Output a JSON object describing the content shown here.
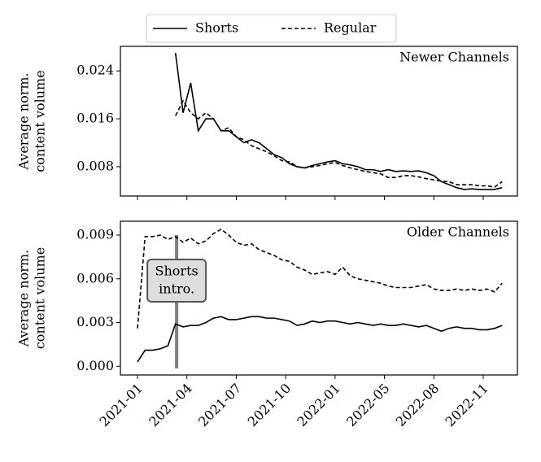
{
  "chart_data": [
    {
      "type": "line",
      "title": "Newer Channels",
      "ylabel": [
        "Average norm.",
        "content volume"
      ],
      "x": [
        10,
        12,
        14,
        16,
        18,
        20,
        22,
        24,
        26,
        28,
        30,
        32,
        34,
        36,
        38,
        40,
        42,
        44,
        46,
        48,
        50,
        52,
        54,
        56,
        58,
        60,
        62,
        64,
        66,
        68,
        70,
        72,
        74,
        76,
        78,
        80,
        82,
        84,
        86,
        88,
        90,
        92,
        94,
        96
      ],
      "series": [
        {
          "name": "Shorts",
          "color": "#000000",
          "linestyle": "solid",
          "values": [
            0.027,
            0.017,
            0.022,
            0.014,
            0.016,
            0.016,
            0.014,
            0.014,
            0.013,
            0.012,
            0.0125,
            0.012,
            0.011,
            0.01,
            0.0095,
            0.0085,
            0.008,
            0.0078,
            0.0082,
            0.0085,
            0.0088,
            0.009,
            0.0085,
            0.0083,
            0.008,
            0.0075,
            0.0075,
            0.0072,
            0.0075,
            0.0072,
            0.0073,
            0.0072,
            0.0073,
            0.007,
            0.0065,
            0.0055,
            0.005,
            0.0045,
            0.0042,
            0.0043,
            0.0042,
            0.0042,
            0.0042,
            0.0045
          ]
        },
        {
          "name": "Regular",
          "color": "#000000",
          "linestyle": "dashed",
          "values": [
            0.0165,
            0.019,
            0.017,
            0.016,
            0.017,
            0.016,
            0.014,
            0.0145,
            0.013,
            0.0125,
            0.0115,
            0.011,
            0.0105,
            0.0098,
            0.009,
            0.0088,
            0.008,
            0.0078,
            0.008,
            0.0082,
            0.0085,
            0.0087,
            0.0082,
            0.0078,
            0.0075,
            0.0072,
            0.007,
            0.0068,
            0.0062,
            0.0062,
            0.0065,
            0.0065,
            0.0063,
            0.006,
            0.0058,
            0.0056,
            0.0055,
            0.005,
            0.005,
            0.005,
            0.0048,
            0.0048,
            0.0046,
            0.0055
          ]
        }
      ],
      "xlim": [
        -4.5,
        100
      ],
      "xticks": [
        0,
        13,
        26,
        39,
        52,
        65,
        78,
        91
      ],
      "ylim": [
        0.0031,
        0.0281
      ],
      "yticks": [
        0.008,
        0.016,
        0.024
      ]
    },
    {
      "type": "line",
      "title": "Older Channels",
      "ylabel": [
        "Average norm.",
        "content volume"
      ],
      "x": [
        0,
        2,
        4,
        6,
        8,
        10,
        12,
        14,
        16,
        18,
        20,
        22,
        24,
        26,
        28,
        30,
        32,
        34,
        36,
        38,
        40,
        42,
        44,
        46,
        48,
        50,
        52,
        54,
        56,
        58,
        60,
        62,
        64,
        66,
        68,
        70,
        72,
        74,
        76,
        78,
        80,
        82,
        84,
        86,
        88,
        90,
        92,
        94,
        96
      ],
      "series": [
        {
          "color": "#000000",
          "linestyle": "solid",
          "values": [
            0.0003,
            0.0011,
            0.0011,
            0.0012,
            0.0014,
            0.0029,
            0.0027,
            0.0028,
            0.0028,
            0.003,
            0.0033,
            0.0034,
            0.0032,
            0.0032,
            0.0033,
            0.0034,
            0.0034,
            0.0033,
            0.0033,
            0.0032,
            0.0031,
            0.0028,
            0.0029,
            0.0031,
            0.003,
            0.0031,
            0.0031,
            0.003,
            0.0029,
            0.003,
            0.0029,
            0.0028,
            0.0029,
            0.0028,
            0.0028,
            0.0029,
            0.0028,
            0.0027,
            0.0028,
            0.0026,
            0.0024,
            0.0026,
            0.0027,
            0.0026,
            0.0026,
            0.0025,
            0.0025,
            0.0026,
            0.0028
          ]
        },
        {
          "color": "#000000",
          "linestyle": "dashed",
          "values": [
            0.0026,
            0.0089,
            0.0089,
            0.009,
            0.0087,
            0.0089,
            0.0085,
            0.0088,
            0.0084,
            0.0086,
            0.0091,
            0.0094,
            0.009,
            0.0085,
            0.0083,
            0.0084,
            0.008,
            0.0078,
            0.0076,
            0.0073,
            0.0072,
            0.0068,
            0.0066,
            0.0063,
            0.0064,
            0.0065,
            0.0063,
            0.0068,
            0.0062,
            0.006,
            0.0059,
            0.0058,
            0.0057,
            0.0055,
            0.0054,
            0.0054,
            0.0054,
            0.0055,
            0.0056,
            0.0053,
            0.0052,
            0.0052,
            0.0053,
            0.0052,
            0.0053,
            0.0052,
            0.0053,
            0.0051,
            0.0057
          ]
        }
      ],
      "xlim": [
        -4.5,
        100
      ],
      "xticks": [
        {
          "value": 0,
          "label": "2021-01"
        },
        {
          "value": 13,
          "label": "2021-04"
        },
        {
          "value": 26,
          "label": "2021-07"
        },
        {
          "value": 39,
          "label": "2021-10"
        },
        {
          "value": 52,
          "label": "2022-01"
        },
        {
          "value": 65,
          "label": "2022-05"
        },
        {
          "value": 78,
          "label": "2022-08"
        },
        {
          "value": 91,
          "label": "2022-11"
        }
      ],
      "ylim": [
        -0.0006,
        0.00995
      ],
      "yticks": [
        {
          "value": 0,
          "label": "0.000"
        },
        0.003,
        0.006,
        0.009
      ],
      "vline": 10.3,
      "vline_color": "#808080",
      "annotation": [
        "Shorts",
        "intro."
      ]
    }
  ]
}
